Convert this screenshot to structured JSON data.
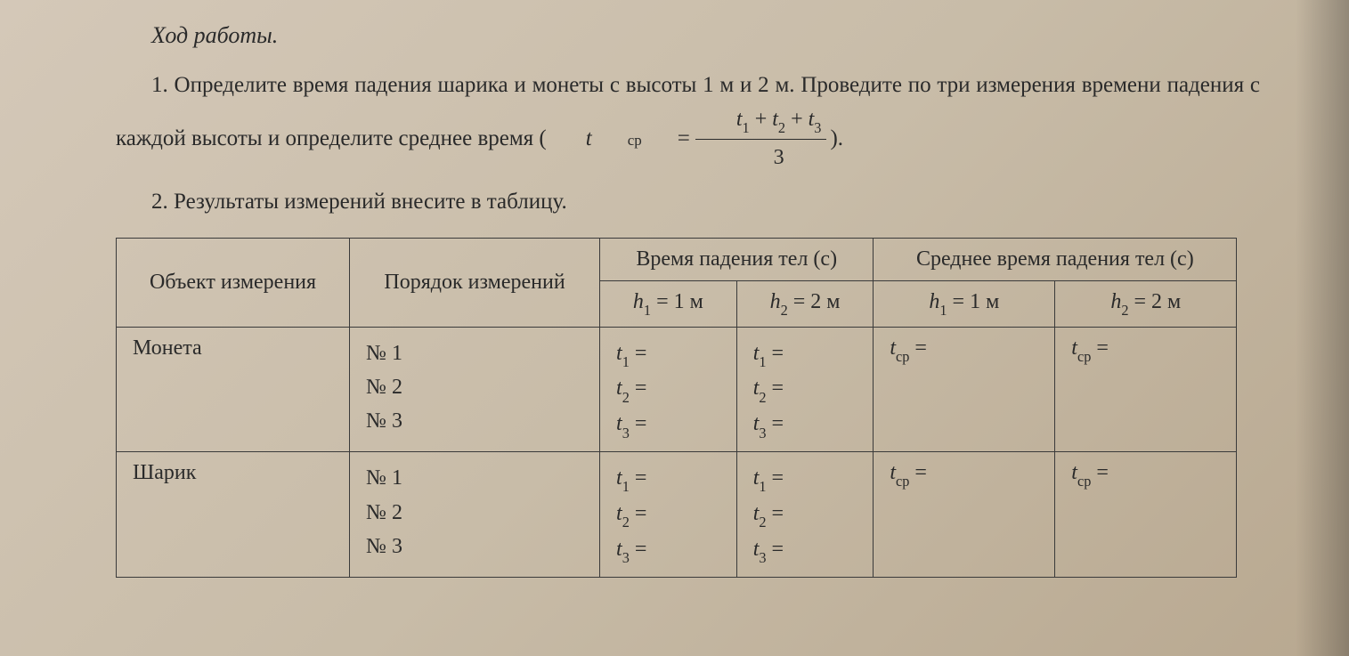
{
  "heading": "Ход работы.",
  "paragraph1_part1": "1. Определите время падения шарика и монеты с высоты 1 м и 2 м. Проведите по три измерения времени падения с каждой высоты и определите среднее время (",
  "paragraph1_part2": ").",
  "formula": {
    "lhs_var": "t",
    "lhs_sub": "ср",
    "eq": "=",
    "num_t1_var": "t",
    "num_t1_sub": "1",
    "plus1": " + ",
    "num_t2_var": "t",
    "num_t2_sub": "2",
    "plus2": " + ",
    "num_t3_var": "t",
    "num_t3_sub": "3",
    "den": "3"
  },
  "paragraph2": "2. Результаты измерений внесите в таблицу.",
  "table": {
    "header": {
      "col1": "Объект измерения",
      "col2": "Порядок измерений",
      "col3": "Время падения тел (с)",
      "col4": "Среднее время падения тел (с)",
      "h1_var": "h",
      "h1_sub": "1",
      "h1_eq": " = 1 м",
      "h2_var": "h",
      "h2_sub": "2",
      "h2_eq": " = 2 м"
    },
    "rows": [
      {
        "object": "Монета",
        "order1": "№ 1",
        "order2": "№ 2",
        "order3": "№ 3"
      },
      {
        "object": "Шарик",
        "order1": "№ 1",
        "order2": "№ 2",
        "order3": "№ 3"
      }
    ],
    "cell_labels": {
      "t1_var": "t",
      "t1_sub": "1",
      "t1_eq": " =",
      "t2_var": "t",
      "t2_sub": "2",
      "t2_eq": " =",
      "t3_var": "t",
      "t3_sub": "3",
      "t3_eq": " =",
      "tcp_var": "t",
      "tcp_sub": "ср",
      "tcp_eq": " ="
    },
    "styling": {
      "border_color": "#3a3a3a",
      "border_width": 1.5,
      "font_family": "Times New Roman",
      "header_fontsize": 24,
      "cell_fontsize": 24,
      "background": "transparent"
    }
  },
  "page_bg_gradient": [
    "#d4c8b8",
    "#c8bca8",
    "#b8a890"
  ],
  "text_color": "#2a2a2a"
}
